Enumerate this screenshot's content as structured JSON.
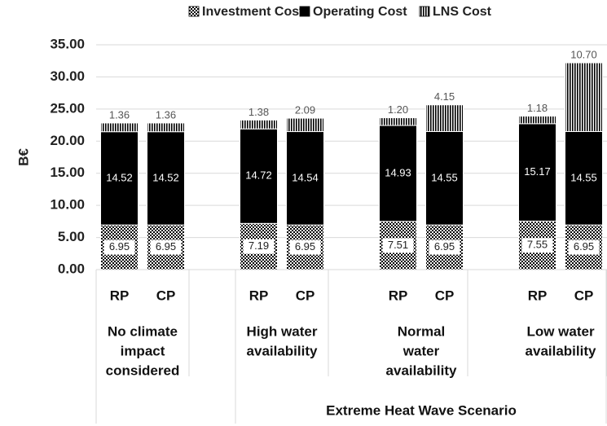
{
  "chart_data": {
    "type": "stacked-bar",
    "y_label": "B€",
    "categories": [
      "RP",
      "CP",
      "RP",
      "CP",
      "RP",
      "CP",
      "RP",
      "CP"
    ],
    "groups": [
      {
        "label": [
          "No climate",
          "impact",
          "considered"
        ]
      },
      {
        "label": [
          "High water",
          "availability"
        ]
      },
      {
        "label": [
          "Normal",
          "water",
          "availability"
        ]
      },
      {
        "label": [
          "Low water",
          "availability"
        ]
      }
    ],
    "outer_group": "Extreme Heat Wave Scenario",
    "series": [
      {
        "name": "Investment Cost",
        "color": "#000000",
        "pattern": "checker",
        "values": [
          6.95,
          6.95,
          7.19,
          6.95,
          7.51,
          6.95,
          7.55,
          6.95
        ],
        "value_labels": [
          "6.95",
          "6.95",
          "7.19",
          "6.95",
          "7.51",
          "6.95",
          "7.55",
          "6.95"
        ]
      },
      {
        "name": "Operating Cost",
        "color": "#000000",
        "pattern": "solid",
        "values": [
          14.52,
          14.52,
          14.72,
          14.54,
          14.93,
          14.55,
          15.17,
          14.55
        ],
        "value_labels": [
          "14.52",
          "14.52",
          "14.72",
          "14.54",
          "14.93",
          "14.55",
          "15.17",
          "14.55"
        ]
      },
      {
        "name": "LNS Cost",
        "color": "#000000",
        "pattern": "vertical",
        "values": [
          1.36,
          1.36,
          1.38,
          2.09,
          1.2,
          4.15,
          1.18,
          10.7
        ],
        "value_labels": [
          "1.36",
          "1.36",
          "1.38",
          "2.09",
          "1.20",
          "4.15",
          "1.18",
          "10.70"
        ]
      }
    ],
    "ylim": [
      0,
      35
    ],
    "yticks": [
      {
        "value": 0,
        "label": "0.00"
      },
      {
        "value": 5,
        "label": "5.00"
      },
      {
        "value": 10,
        "label": "10.00"
      },
      {
        "value": 15,
        "label": "15.00"
      },
      {
        "value": 20,
        "label": "20.00"
      },
      {
        "value": 25,
        "label": "25.00"
      },
      {
        "value": 30,
        "label": "30.00"
      },
      {
        "value": 35,
        "label": "35.00"
      }
    ],
    "grid": true,
    "legend": "top"
  }
}
